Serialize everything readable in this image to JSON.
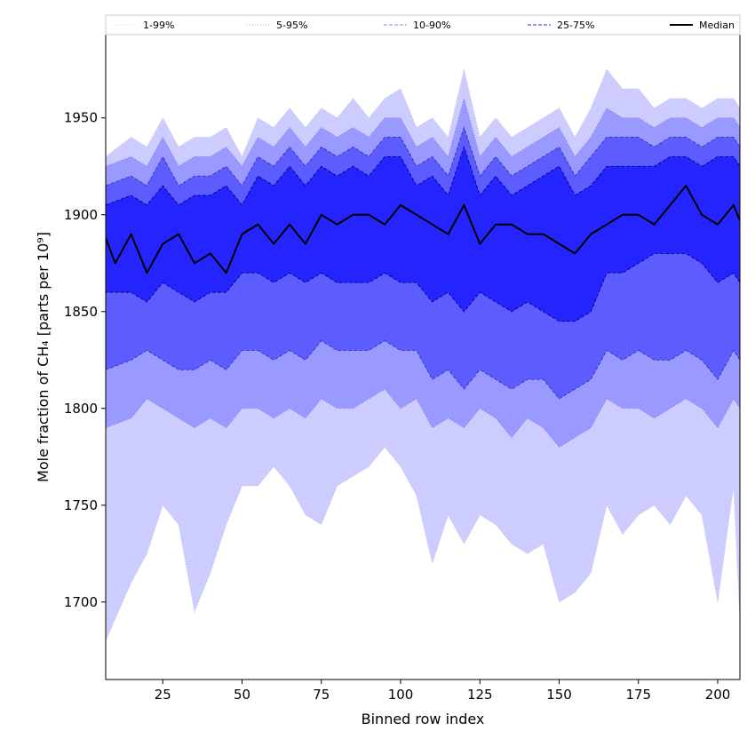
{
  "chart_data": {
    "type": "area",
    "xlabel": "Binned row index",
    "ylabel": "Mole fraction of CH₄ [parts per 10⁹]",
    "xlim": [
      7,
      207
    ],
    "ylim": [
      1660,
      1993
    ],
    "xticks": [
      25,
      50,
      75,
      100,
      125,
      150,
      175,
      200
    ],
    "yticks": [
      1700,
      1750,
      1800,
      1850,
      1900,
      1950
    ],
    "grid": false,
    "legend_position": "top, spanning full width above plot",
    "colors": {
      "band_1_99": "#ccccff",
      "band_5_95": "#9999ff",
      "band_10_90": "#5c5cff",
      "band_25_75": "#2424ff",
      "median": "#000000"
    },
    "series": [
      {
        "name": "1-99%",
        "line_style": "dotted",
        "x": [
          7,
          15,
          20,
          25,
          30,
          35,
          40,
          45,
          50,
          55,
          60,
          65,
          70,
          75,
          80,
          85,
          90,
          95,
          100,
          105,
          110,
          115,
          120,
          125,
          130,
          135,
          140,
          145,
          150,
          155,
          160,
          165,
          170,
          175,
          180,
          185,
          190,
          195,
          200,
          205,
          207
        ],
        "lower": [
          1680,
          1710,
          1725,
          1750,
          1740,
          1695,
          1715,
          1740,
          1760,
          1760,
          1770,
          1760,
          1745,
          1740,
          1760,
          1765,
          1770,
          1780,
          1770,
          1755,
          1720,
          1745,
          1730,
          1745,
          1740,
          1730,
          1725,
          1730,
          1700,
          1705,
          1715,
          1750,
          1735,
          1745,
          1750,
          1740,
          1755,
          1745,
          1700,
          1760,
          1690
        ],
        "upper": [
          1930,
          1940,
          1935,
          1950,
          1935,
          1940,
          1940,
          1945,
          1930,
          1950,
          1945,
          1955,
          1945,
          1955,
          1950,
          1960,
          1950,
          1960,
          1965,
          1945,
          1950,
          1940,
          1975,
          1940,
          1950,
          1940,
          1945,
          1950,
          1955,
          1940,
          1955,
          1975,
          1965,
          1965,
          1955,
          1960,
          1960,
          1955,
          1960,
          1960,
          1955
        ]
      },
      {
        "name": "5-95%",
        "line_style": "dotted",
        "x": [
          7,
          15,
          20,
          25,
          30,
          35,
          40,
          45,
          50,
          55,
          60,
          65,
          70,
          75,
          80,
          85,
          90,
          95,
          100,
          105,
          110,
          115,
          120,
          125,
          130,
          135,
          140,
          145,
          150,
          155,
          160,
          165,
          170,
          175,
          180,
          185,
          190,
          195,
          200,
          205,
          207
        ],
        "lower": [
          1790,
          1795,
          1805,
          1800,
          1795,
          1790,
          1795,
          1790,
          1800,
          1800,
          1795,
          1800,
          1795,
          1805,
          1800,
          1800,
          1805,
          1810,
          1800,
          1805,
          1790,
          1795,
          1790,
          1800,
          1795,
          1785,
          1795,
          1790,
          1780,
          1785,
          1790,
          1805,
          1800,
          1800,
          1795,
          1800,
          1805,
          1800,
          1790,
          1805,
          1800
        ],
        "upper": [
          1925,
          1930,
          1925,
          1940,
          1925,
          1930,
          1930,
          1935,
          1925,
          1940,
          1935,
          1945,
          1935,
          1945,
          1940,
          1945,
          1940,
          1950,
          1950,
          1935,
          1940,
          1930,
          1960,
          1930,
          1940,
          1930,
          1935,
          1940,
          1945,
          1930,
          1940,
          1955,
          1950,
          1950,
          1945,
          1950,
          1950,
          1945,
          1950,
          1950,
          1945
        ]
      },
      {
        "name": "10-90%",
        "line_style": "dashed",
        "x": [
          7,
          15,
          20,
          25,
          30,
          35,
          40,
          45,
          50,
          55,
          60,
          65,
          70,
          75,
          80,
          85,
          90,
          95,
          100,
          105,
          110,
          115,
          120,
          125,
          130,
          135,
          140,
          145,
          150,
          155,
          160,
          165,
          170,
          175,
          180,
          185,
          190,
          195,
          200,
          205,
          207
        ],
        "lower": [
          1820,
          1825,
          1830,
          1825,
          1820,
          1820,
          1825,
          1820,
          1830,
          1830,
          1825,
          1830,
          1825,
          1835,
          1830,
          1830,
          1830,
          1835,
          1830,
          1830,
          1815,
          1820,
          1810,
          1820,
          1815,
          1810,
          1815,
          1815,
          1805,
          1810,
          1815,
          1830,
          1825,
          1830,
          1825,
          1825,
          1830,
          1825,
          1815,
          1830,
          1825
        ],
        "upper": [
          1915,
          1920,
          1915,
          1930,
          1915,
          1920,
          1920,
          1925,
          1915,
          1930,
          1925,
          1935,
          1925,
          1935,
          1930,
          1935,
          1930,
          1940,
          1940,
          1925,
          1930,
          1920,
          1945,
          1920,
          1930,
          1920,
          1925,
          1930,
          1935,
          1920,
          1930,
          1940,
          1940,
          1940,
          1935,
          1940,
          1940,
          1935,
          1940,
          1940,
          1935
        ]
      },
      {
        "name": "25-75%",
        "line_style": "dashed",
        "x": [
          7,
          15,
          20,
          25,
          30,
          35,
          40,
          45,
          50,
          55,
          60,
          65,
          70,
          75,
          80,
          85,
          90,
          95,
          100,
          105,
          110,
          115,
          120,
          125,
          130,
          135,
          140,
          145,
          150,
          155,
          160,
          165,
          170,
          175,
          180,
          185,
          190,
          195,
          200,
          205,
          207
        ],
        "lower": [
          1860,
          1860,
          1855,
          1865,
          1860,
          1855,
          1860,
          1860,
          1870,
          1870,
          1865,
          1870,
          1865,
          1870,
          1865,
          1865,
          1865,
          1870,
          1865,
          1865,
          1855,
          1860,
          1850,
          1860,
          1855,
          1850,
          1855,
          1850,
          1845,
          1845,
          1850,
          1870,
          1870,
          1875,
          1880,
          1880,
          1880,
          1875,
          1865,
          1870,
          1865
        ],
        "upper": [
          1905,
          1910,
          1905,
          1915,
          1905,
          1910,
          1910,
          1915,
          1905,
          1920,
          1915,
          1925,
          1915,
          1925,
          1920,
          1925,
          1920,
          1930,
          1930,
          1915,
          1920,
          1910,
          1935,
          1910,
          1920,
          1910,
          1915,
          1920,
          1925,
          1910,
          1915,
          1925,
          1925,
          1925,
          1925,
          1930,
          1930,
          1925,
          1930,
          1930,
          1925
        ]
      },
      {
        "name": "Median",
        "line_style": "solid",
        "x": [
          7,
          10,
          15,
          20,
          25,
          30,
          35,
          40,
          45,
          50,
          55,
          60,
          65,
          70,
          75,
          80,
          85,
          90,
          95,
          100,
          105,
          110,
          115,
          120,
          125,
          130,
          135,
          140,
          145,
          150,
          155,
          160,
          165,
          170,
          175,
          180,
          185,
          190,
          195,
          200,
          205,
          207
        ],
        "values": [
          1888,
          1875,
          1890,
          1870,
          1885,
          1890,
          1875,
          1880,
          1870,
          1890,
          1895,
          1885,
          1895,
          1885,
          1900,
          1895,
          1900,
          1900,
          1895,
          1905,
          1900,
          1895,
          1890,
          1905,
          1885,
          1895,
          1895,
          1890,
          1890,
          1885,
          1880,
          1890,
          1895,
          1900,
          1900,
          1895,
          1905,
          1915,
          1900,
          1895,
          1905,
          1897
        ]
      }
    ]
  }
}
